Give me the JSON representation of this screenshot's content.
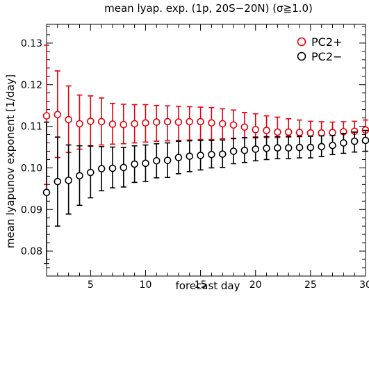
{
  "chart_data": {
    "type": "scatter",
    "title": "mean lyap. exp. (1p, 20S−20N) (σ≧1.0)",
    "xlabel": "forecast day",
    "ylabel": "mean lyapunov exponent [1/day]",
    "xlim": [
      1,
      30
    ],
    "ylim": [
      0.074,
      0.1345
    ],
    "xticks": [
      5,
      10,
      15,
      20,
      25,
      30
    ],
    "xtick_labels": [
      "5",
      "10",
      "15",
      "20",
      "25",
      "30"
    ],
    "yticks": [
      0.08,
      0.09,
      0.1,
      0.11,
      0.12,
      0.13
    ],
    "ytick_labels": [
      "0.08",
      "0.09",
      "0.10",
      "0.11",
      "0.12",
      "0.13"
    ],
    "grid": false,
    "legend_position": "top-right",
    "x": [
      1,
      2,
      3,
      4,
      5,
      6,
      7,
      8,
      9,
      10,
      11,
      12,
      13,
      14,
      15,
      16,
      17,
      18,
      19,
      20,
      21,
      22,
      23,
      24,
      25,
      26,
      27,
      28,
      29,
      30
    ],
    "series": [
      {
        "name": "PC2+",
        "color": "#e8000b",
        "marker": "open-circle",
        "values": [
          0.1125,
          0.1128,
          0.1116,
          0.1106,
          0.1112,
          0.1111,
          0.1105,
          0.1104,
          0.1106,
          0.1108,
          0.111,
          0.1111,
          0.111,
          0.1111,
          0.1111,
          0.1108,
          0.1106,
          0.1103,
          0.1098,
          0.1092,
          0.109,
          0.1086,
          0.1086,
          0.1085,
          0.1084,
          0.1084,
          0.1085,
          0.1087,
          0.1088,
          0.1091
        ],
        "err_low": [
          0.096,
          0.1025,
          0.1037,
          0.1045,
          0.1052,
          0.1055,
          0.1057,
          0.1058,
          0.106,
          0.1062,
          0.1064,
          0.1065,
          0.1066,
          0.1067,
          0.1068,
          0.1068,
          0.107,
          0.107,
          0.1072,
          0.1072,
          0.1073,
          0.1073,
          0.1074,
          0.1075,
          0.1055,
          0.1056,
          0.1058,
          0.1062,
          0.1065,
          0.1068
        ],
        "err_high": [
          0.1295,
          0.1233,
          0.1197,
          0.1175,
          0.1173,
          0.1168,
          0.1155,
          0.1153,
          0.1152,
          0.1152,
          0.115,
          0.1149,
          0.1148,
          0.1147,
          0.1146,
          0.1145,
          0.1142,
          0.1139,
          0.1133,
          0.113,
          0.1125,
          0.1122,
          0.1118,
          0.1115,
          0.1112,
          0.1111,
          0.111,
          0.1111,
          0.1112,
          0.1115
        ]
      },
      {
        "name": "PC2−",
        "color": "#000000",
        "marker": "open-circle",
        "values": [
          0.0941,
          0.0967,
          0.097,
          0.0981,
          0.0989,
          0.0998,
          0.0999,
          0.1001,
          0.1009,
          0.1011,
          0.1017,
          0.1018,
          0.1025,
          0.1028,
          0.103,
          0.1032,
          0.1033,
          0.104,
          0.1042,
          0.1045,
          0.1047,
          0.1048,
          0.1048,
          0.1049,
          0.1049,
          0.1051,
          0.1054,
          0.106,
          0.1064,
          0.1066
        ],
        "err_low": [
          0.077,
          0.086,
          0.0889,
          0.091,
          0.0928,
          0.0945,
          0.0952,
          0.0954,
          0.0965,
          0.0967,
          0.0976,
          0.0977,
          0.0986,
          0.0991,
          0.0995,
          0.1,
          0.1001,
          0.101,
          0.1013,
          0.1017,
          0.102,
          0.1022,
          0.1022,
          0.1024,
          0.1024,
          0.1027,
          0.1032,
          0.1035,
          0.1038,
          0.104
        ],
        "err_high": [
          0.111,
          0.1074,
          0.1055,
          0.1053,
          0.1053,
          0.1051,
          0.105,
          0.1049,
          0.1053,
          0.1055,
          0.1058,
          0.106,
          0.1064,
          0.1065,
          0.1066,
          0.1066,
          0.1067,
          0.1071,
          0.1073,
          0.1074,
          0.1075,
          0.1075,
          0.1076,
          0.1076,
          0.1076,
          0.1077,
          0.1078,
          0.1083,
          0.1086,
          0.109
        ]
      }
    ]
  }
}
